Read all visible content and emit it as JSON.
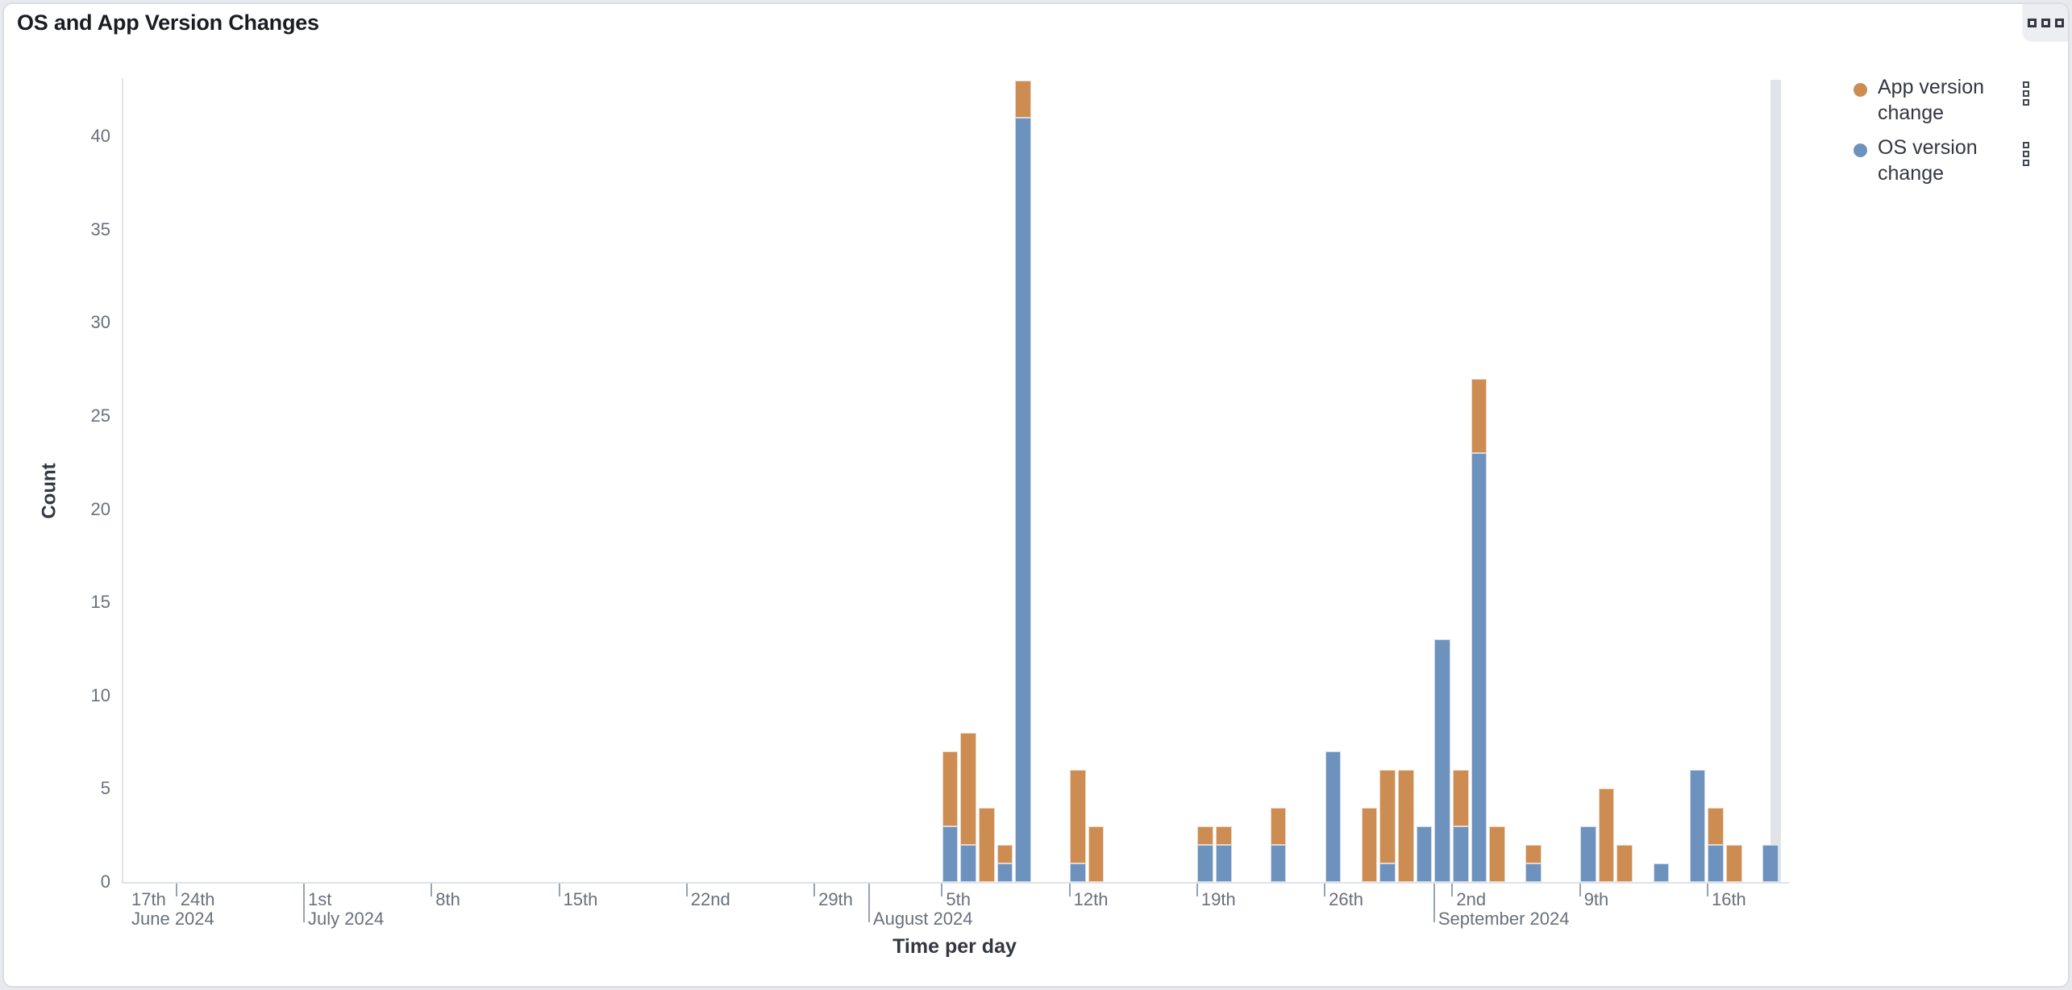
{
  "panel": {
    "title": "OS and App Version Changes",
    "options_icon": "boxes-horizontal-icon"
  },
  "legend": {
    "position": "right",
    "items": [
      {
        "label": "App version change",
        "color": "#CD8C51",
        "series_key": "app"
      },
      {
        "label": "OS version change",
        "color": "#6D92BE",
        "series_key": "os"
      }
    ]
  },
  "chart_data": {
    "type": "bar",
    "stacked": true,
    "title": "OS and App Version Changes",
    "xlabel": "Time per day",
    "ylabel": "Count",
    "ylim": [
      0,
      43
    ],
    "grid": false,
    "legend_position": "right",
    "y_ticks": [
      0,
      5,
      10,
      15,
      20,
      25,
      30,
      35,
      40
    ],
    "series": [
      {
        "name": "OS version change",
        "key": "os",
        "color": "#6D92BE",
        "stack_order": "bottom"
      },
      {
        "name": "App version change",
        "key": "app",
        "color": "#CD8C51",
        "stack_order": "top"
      }
    ],
    "bars": [
      {
        "date": "2024-08-05",
        "os": 3,
        "app": 4
      },
      {
        "date": "2024-08-06",
        "os": 2,
        "app": 6
      },
      {
        "date": "2024-08-07",
        "os": 0,
        "app": 4
      },
      {
        "date": "2024-08-08",
        "os": 1,
        "app": 1
      },
      {
        "date": "2024-08-09",
        "os": 41,
        "app": 2
      },
      {
        "date": "2024-08-12",
        "os": 1,
        "app": 5
      },
      {
        "date": "2024-08-13",
        "os": 0,
        "app": 3
      },
      {
        "date": "2024-08-19",
        "os": 2,
        "app": 1
      },
      {
        "date": "2024-08-20",
        "os": 2,
        "app": 1
      },
      {
        "date": "2024-08-23",
        "os": 2,
        "app": 2
      },
      {
        "date": "2024-08-26",
        "os": 7,
        "app": 0
      },
      {
        "date": "2024-08-28",
        "os": 0,
        "app": 4
      },
      {
        "date": "2024-08-29",
        "os": 1,
        "app": 5
      },
      {
        "date": "2024-08-30",
        "os": 0,
        "app": 6
      },
      {
        "date": "2024-08-31",
        "os": 3,
        "app": 0
      },
      {
        "date": "2024-09-01",
        "os": 13,
        "app": 0
      },
      {
        "date": "2024-09-02",
        "os": 3,
        "app": 3
      },
      {
        "date": "2024-09-03",
        "os": 23,
        "app": 4
      },
      {
        "date": "2024-09-04",
        "os": 0,
        "app": 3
      },
      {
        "date": "2024-09-06",
        "os": 1,
        "app": 1
      },
      {
        "date": "2024-09-09",
        "os": 3,
        "app": 0
      },
      {
        "date": "2024-09-10",
        "os": 0,
        "app": 5
      },
      {
        "date": "2024-09-11",
        "os": 0,
        "app": 2
      },
      {
        "date": "2024-09-13",
        "os": 1,
        "app": 0
      },
      {
        "date": "2024-09-15",
        "os": 6,
        "app": 0
      },
      {
        "date": "2024-09-16",
        "os": 2,
        "app": 2
      },
      {
        "date": "2024-09-17",
        "os": 0,
        "app": 2
      },
      {
        "date": "2024-09-19",
        "os": 2,
        "app": 0
      }
    ],
    "partial_bucket": {
      "date": "2024-09-19",
      "marker": "gray-endzone"
    },
    "x_day_ticks": [
      {
        "label": "17th",
        "date": "2024-06-17",
        "clamped": true
      },
      {
        "label": "24th",
        "date": "2024-06-24"
      },
      {
        "label": "1st",
        "date": "2024-07-01"
      },
      {
        "label": "8th",
        "date": "2024-07-08"
      },
      {
        "label": "15th",
        "date": "2024-07-15"
      },
      {
        "label": "22nd",
        "date": "2024-07-22"
      },
      {
        "label": "29th",
        "date": "2024-07-29"
      },
      {
        "label": "5th",
        "date": "2024-08-05"
      },
      {
        "label": "12th",
        "date": "2024-08-12"
      },
      {
        "label": "19th",
        "date": "2024-08-19"
      },
      {
        "label": "26th",
        "date": "2024-08-26"
      },
      {
        "label": "2nd",
        "date": "2024-09-02"
      },
      {
        "label": "9th",
        "date": "2024-09-09"
      },
      {
        "label": "16th",
        "date": "2024-09-16"
      }
    ],
    "x_month_ticks": [
      {
        "label": "June 2024",
        "date": "2024-06-17",
        "clamped": true,
        "no_line": true
      },
      {
        "label": "July 2024",
        "date": "2024-07-01"
      },
      {
        "label": "August 2024",
        "date": "2024-08-01"
      },
      {
        "label": "September 2024",
        "date": "2024-09-01"
      }
    ]
  },
  "colors": {
    "app_series": "#CD8C51",
    "os_series": "#6D92BE",
    "endzone": "#E1E3E8",
    "axis_text": "#69707D",
    "title_text": "#1A1C21"
  }
}
